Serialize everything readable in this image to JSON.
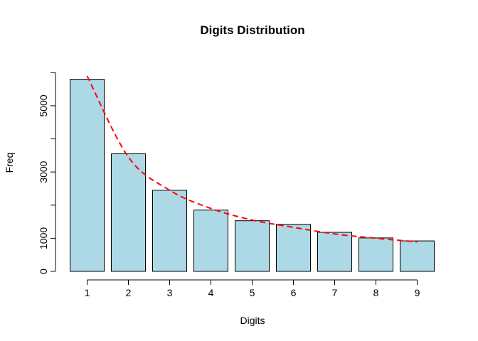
{
  "chart_data": {
    "type": "bar",
    "title": "Digits Distribution",
    "xlabel": "Digits",
    "ylabel": "Freq",
    "categories": [
      "1",
      "2",
      "3",
      "4",
      "5",
      "6",
      "7",
      "8",
      "9"
    ],
    "values": [
      5800,
      3550,
      2450,
      1850,
      1530,
      1420,
      1180,
      1010,
      920
    ],
    "overlay_line": {
      "style": "dashed",
      "color": "#ff0000",
      "values": [
        5900,
        3450,
        2450,
        1900,
        1550,
        1330,
        1130,
        1000,
        890
      ]
    },
    "ylim": [
      0,
      6000
    ],
    "y_ticks": [
      0,
      1000,
      2000,
      3000,
      4000,
      5000,
      6000
    ],
    "y_tick_labels": [
      "0",
      "1000",
      "",
      "3000",
      "",
      "5000",
      ""
    ],
    "bar_color": "#add8e6",
    "grid": false
  }
}
